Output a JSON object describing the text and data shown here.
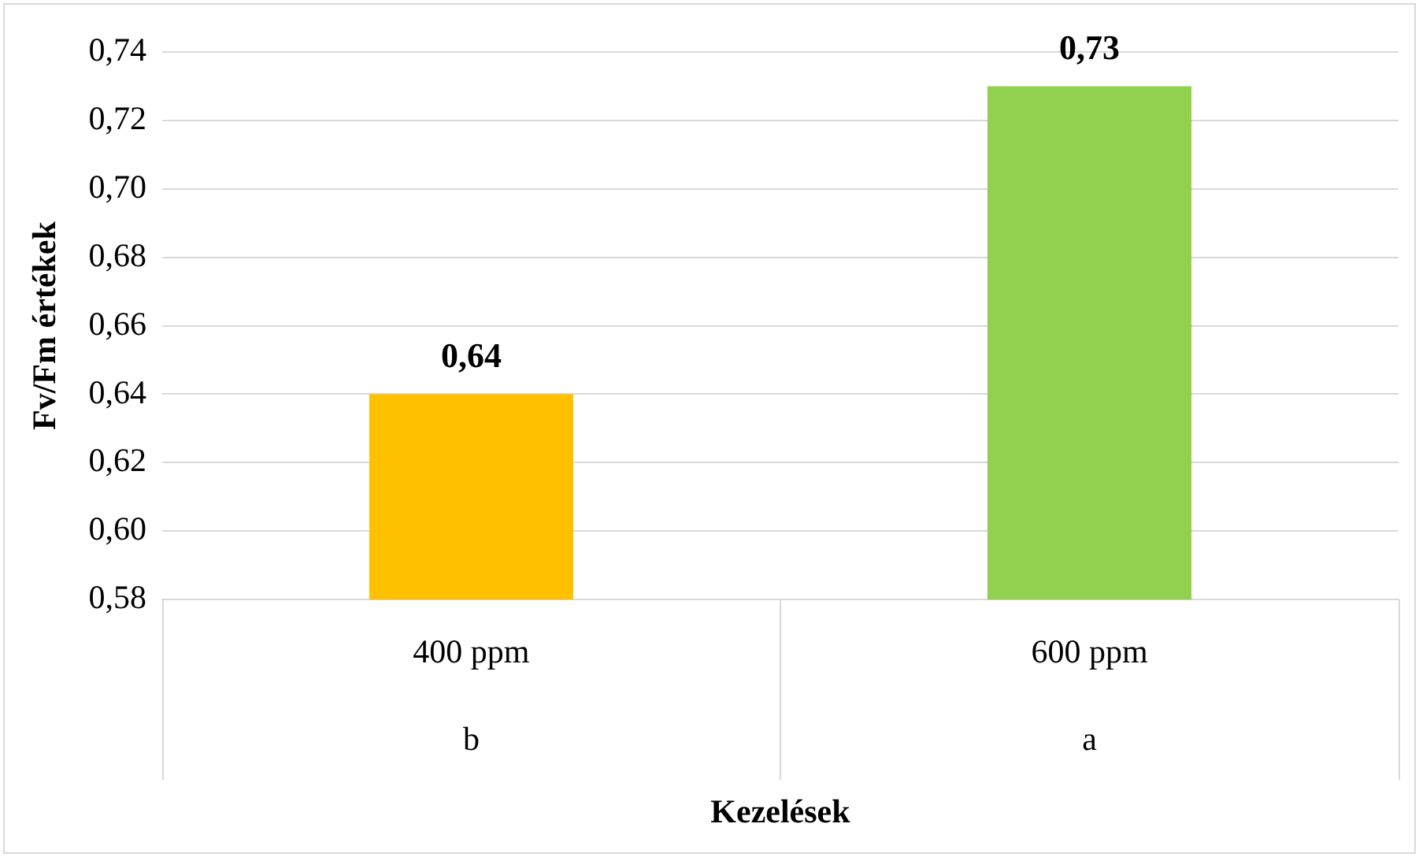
{
  "chart_data": {
    "type": "bar",
    "xlabel": "Kezelések",
    "ylabel": "Fv/Fm értékek",
    "categories": [
      "400 ppm",
      "600 ppm"
    ],
    "values": [
      0.64,
      0.73
    ],
    "colors": [
      "#ffc000",
      "#92d050"
    ],
    "value_labels": [
      "0,64",
      "0,73"
    ],
    "ylim": [
      0.58,
      0.74
    ],
    "yticks": [
      {
        "value": 0.58,
        "label": "0,58"
      },
      {
        "value": 0.6,
        "label": "0,60"
      },
      {
        "value": 0.62,
        "label": "0,62"
      },
      {
        "value": 0.64,
        "label": "0,64"
      },
      {
        "value": 0.66,
        "label": "0,66"
      },
      {
        "value": 0.68,
        "label": "0,68"
      },
      {
        "value": 0.7,
        "label": "0,70"
      },
      {
        "value": 0.72,
        "label": "0,72"
      },
      {
        "value": 0.74,
        "label": "0,74"
      }
    ],
    "grid": "y",
    "legend": false,
    "annotations": [
      "b",
      "a"
    ]
  }
}
